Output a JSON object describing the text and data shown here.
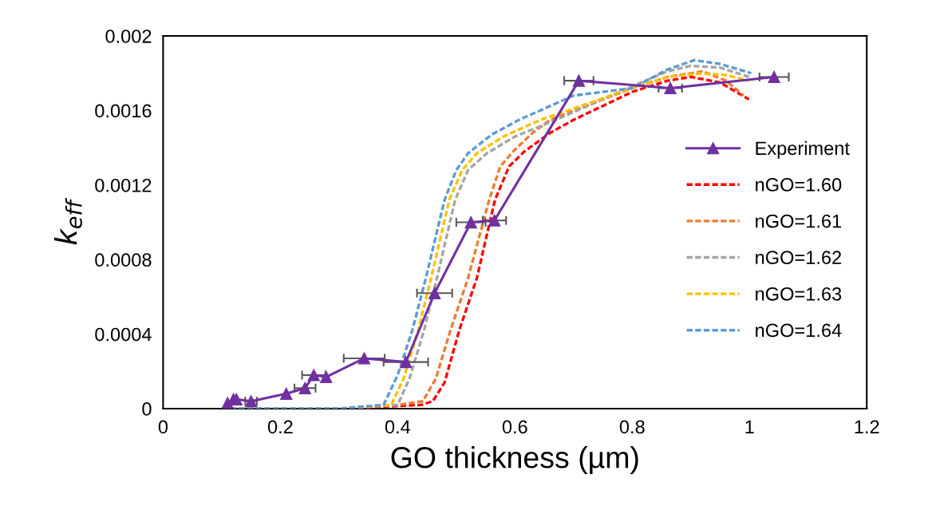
{
  "chart_data": {
    "type": "line",
    "xlabel": "GO thickness (µm)",
    "ylabel": "k$_{eff}$",
    "xlim": [
      0,
      1.2
    ],
    "xticks": [
      0,
      0.2,
      0.4,
      0.6,
      0.8,
      1,
      1.2
    ],
    "ylim": [
      0,
      0.002
    ],
    "yticks": [
      0,
      0.0004,
      0.0008,
      0.0012,
      0.0016,
      0.002
    ],
    "grid": false,
    "legend": "right",
    "series": [
      {
        "name": "Experiment",
        "color": "#7030a0",
        "marker": "triangle",
        "line_style": "solid",
        "x": [
          0.11,
          0.12,
          0.125,
          0.15,
          0.21,
          0.242,
          0.257,
          0.278,
          0.343,
          0.414,
          0.463,
          0.525,
          0.565,
          0.709,
          0.865,
          1.042
        ],
        "values": [
          3e-05,
          5e-05,
          5e-05,
          4e-05,
          8e-05,
          0.00011,
          0.00018,
          0.00017,
          0.00027,
          0.00025,
          0.00062,
          0.001,
          0.00101,
          0.00176,
          0.00172,
          0.00178
        ],
        "xerrors": [
          null,
          null,
          null,
          0.01,
          null,
          0.018,
          0.02,
          null,
          0.035,
          0.038,
          0.03,
          0.025,
          0.02,
          0.025,
          0.02,
          0.025
        ]
      },
      {
        "name": "nGO=1.60",
        "color": "#ff0000",
        "marker": "none",
        "line_style": "dashed",
        "x": [
          0.1,
          0.3,
          0.44,
          0.46,
          0.48,
          0.505,
          0.535,
          0.566,
          0.59,
          0.616,
          0.66,
          0.7,
          0.8,
          0.86,
          0.9,
          0.95,
          0.999
        ],
        "values": [
          0,
          0,
          2e-05,
          4e-05,
          0.00014,
          0.00042,
          0.0007,
          0.00112,
          0.0013,
          0.00138,
          0.00148,
          0.00155,
          0.0017,
          0.00176,
          0.00178,
          0.00175,
          0.00166
        ]
      },
      {
        "name": "nGO=1.61",
        "color": "#ed7d31",
        "marker": "none",
        "line_style": "dashed",
        "x": [
          0.1,
          0.3,
          0.4,
          0.443,
          0.465,
          0.49,
          0.52,
          0.556,
          0.575,
          0.597,
          0.63,
          0.66,
          0.8,
          0.86,
          0.92,
          0.96,
          0.99
        ],
        "values": [
          0,
          0,
          2e-05,
          4e-05,
          0.00016,
          0.00042,
          0.0007,
          0.00112,
          0.0013,
          0.00138,
          0.00148,
          0.00155,
          0.00172,
          0.00178,
          0.00181,
          0.00176,
          0.00168
        ]
      },
      {
        "name": "nGO=1.62",
        "color": "#a5a5a5",
        "marker": "none",
        "line_style": "dashed",
        "x": [
          0.1,
          0.3,
          0.4,
          0.42,
          0.445,
          0.467,
          0.498,
          0.52,
          0.552,
          0.6,
          0.67,
          0.8,
          0.86,
          0.9,
          0.95,
          1.0
        ],
        "values": [
          0,
          0,
          2e-05,
          0.00016,
          0.00042,
          0.0007,
          0.00112,
          0.00128,
          0.00137,
          0.00146,
          0.00155,
          0.00173,
          0.00181,
          0.00184,
          0.00183,
          0.00178
        ]
      },
      {
        "name": "nGO=1.63",
        "color": "#ffc000",
        "marker": "none",
        "line_style": "dashed",
        "x": [
          0.1,
          0.3,
          0.389,
          0.41,
          0.435,
          0.457,
          0.488,
          0.51,
          0.535,
          0.58,
          0.644,
          0.8,
          0.86,
          0.92,
          0.96,
          1.0
        ],
        "values": [
          0,
          0,
          2e-05,
          0.00016,
          0.00042,
          0.0007,
          0.00112,
          0.00128,
          0.00137,
          0.00146,
          0.00155,
          0.00172,
          0.00178,
          0.0018,
          0.00179,
          0.00176
        ]
      },
      {
        "name": "nGO=1.64",
        "color": "#5b9bd5",
        "marker": "none",
        "line_style": "dashed",
        "x": [
          0.1,
          0.3,
          0.376,
          0.4,
          0.425,
          0.448,
          0.48,
          0.5,
          0.52,
          0.56,
          0.607,
          0.7,
          0.8,
          0.86,
          0.906,
          0.95,
          1.003
        ],
        "values": [
          0,
          0,
          2e-05,
          0.00018,
          0.00042,
          0.0007,
          0.00112,
          0.00128,
          0.00137,
          0.00147,
          0.00155,
          0.00168,
          0.00172,
          0.00182,
          0.00187,
          0.00185,
          0.0018
        ]
      }
    ]
  }
}
